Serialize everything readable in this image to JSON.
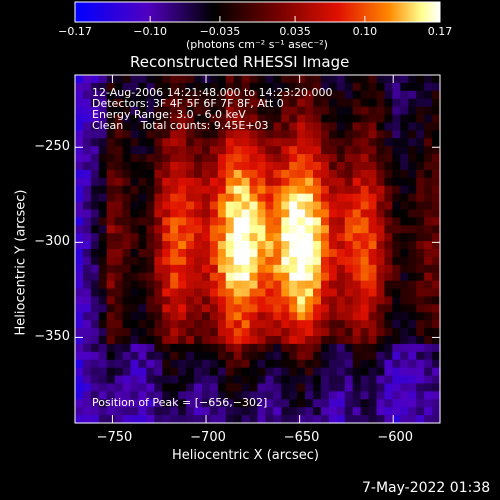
{
  "chart_data": {
    "type": "heatmap",
    "title": "Reconstructed RHESSI Image",
    "xlabel": "Heliocentric X (arcsec)",
    "ylabel": "Heliocentric Y (arcsec)",
    "xlim": [
      -770,
      -575
    ],
    "ylim": [
      -395,
      -212
    ],
    "x_ticks": [
      -750,
      -700,
      -650,
      -600
    ],
    "y_ticks": [
      -250,
      -300,
      -350
    ],
    "x_tick_labels": [
      "−750",
      "−700",
      "−650",
      "−600"
    ],
    "y_tick_labels": [
      "−250",
      "−300",
      "−350"
    ],
    "colorbar": {
      "min": -0.17,
      "max": 0.17,
      "ticks": [
        -0.17,
        -0.1,
        -0.035,
        0.035,
        0.1,
        0.17
      ],
      "tick_labels": [
        "−0.17",
        "−0.10",
        "−0.035",
        "0.035",
        "0.10",
        "0.17"
      ],
      "unit_label": "(photons cm⁻² s⁻¹ asec⁻²)",
      "colormap": [
        "#0000ff",
        "#6a00cc",
        "#000000",
        "#5a0000",
        "#c80000",
        "#ff7000",
        "#ffff90",
        "#ffffff"
      ]
    },
    "peak": [
      -656,
      -302
    ]
  },
  "annotations": {
    "time_range": "12-Aug-2006 14:21:48.000 to 14:23:20.000",
    "detectors": "Detectors: 3F 4F 5F 6F 7F 8F, Att 0",
    "energy": "Energy Range: 3.0 - 6.0 keV",
    "clean": "Clean     Total counts: 9.45E+03",
    "peak_text": "Position of Peak = [−656,−302]"
  },
  "timestamp": "7-May-2022 01:38"
}
